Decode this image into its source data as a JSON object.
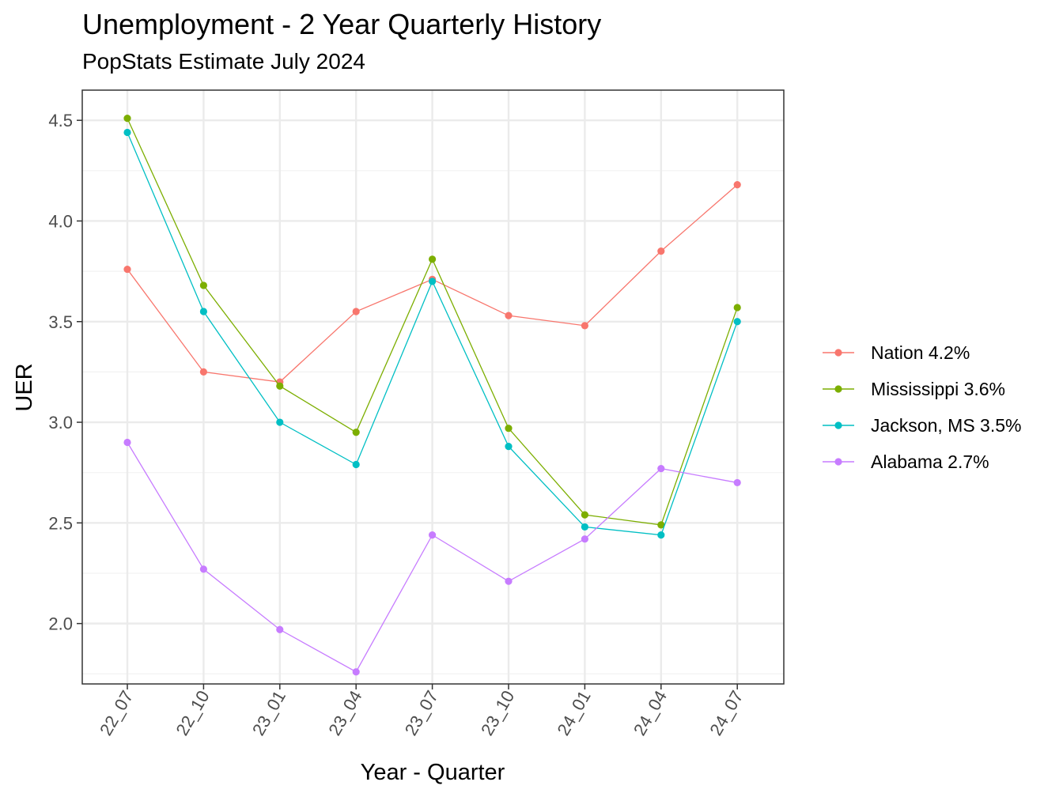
{
  "chart_data": {
    "type": "line",
    "title": "Unemployment - 2 Year Quarterly History",
    "subtitle": "PopStats Estimate July 2024",
    "xlabel": "Year - Quarter",
    "ylabel": "UER",
    "categories": [
      "22_07",
      "22_10",
      "23_01",
      "23_04",
      "23_07",
      "23_10",
      "24_01",
      "24_04",
      "24_07"
    ],
    "yticks": [
      "2.0",
      "2.5",
      "3.0",
      "3.5",
      "4.0",
      "4.5"
    ],
    "ylim": [
      1.7,
      4.65
    ],
    "grid": true,
    "legend_position": "right",
    "series": [
      {
        "name": "Nation 4.2%",
        "color": "#F8766D",
        "values": [
          3.76,
          3.25,
          3.2,
          3.55,
          3.71,
          3.53,
          3.48,
          3.85,
          4.18
        ]
      },
      {
        "name": "Mississippi 3.6%",
        "color": "#7CAE00",
        "values": [
          4.51,
          3.68,
          3.18,
          2.95,
          3.81,
          2.97,
          2.54,
          2.49,
          3.57
        ]
      },
      {
        "name": "Jackson, MS 3.5%",
        "color": "#00BFC4",
        "values": [
          4.44,
          3.55,
          3.0,
          2.79,
          3.7,
          2.88,
          2.48,
          2.44,
          3.5
        ]
      },
      {
        "name": "Alabama 2.7%",
        "color": "#C77CFF",
        "values": [
          2.9,
          2.27,
          1.97,
          1.76,
          2.44,
          2.21,
          2.42,
          2.77,
          2.7
        ]
      }
    ]
  }
}
